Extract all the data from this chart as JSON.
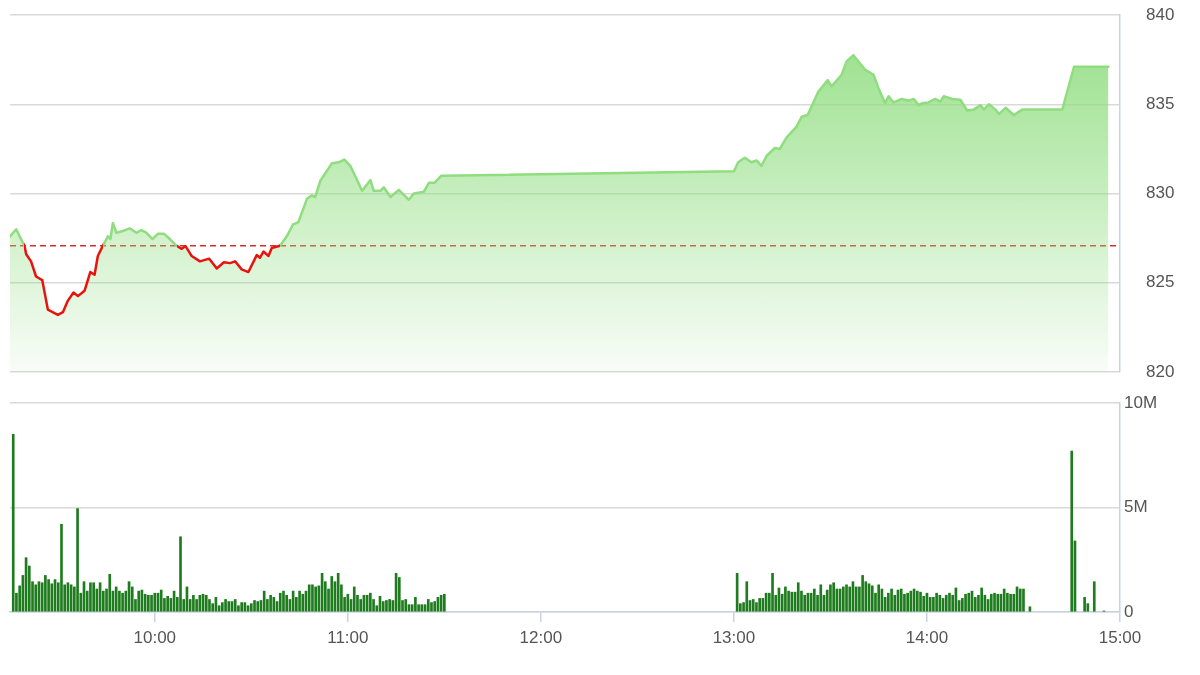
{
  "chart_data": [
    {
      "type": "area",
      "x": [
        9.25,
        9.282,
        9.316,
        9.325,
        9.334,
        9.359,
        9.385,
        9.417,
        9.446,
        9.498,
        9.524,
        9.55,
        9.579,
        9.602,
        9.636,
        9.666,
        9.688,
        9.705,
        9.731,
        9.757,
        9.77,
        9.783,
        9.801,
        9.835,
        9.87,
        9.905,
        9.931,
        9.957,
        9.988,
        10.017,
        10.047,
        10.078,
        10.113,
        10.139,
        10.159,
        10.191,
        10.234,
        10.282,
        10.321,
        10.358,
        10.39,
        10.416,
        10.45,
        10.485,
        10.528,
        10.545,
        10.563,
        10.589,
        10.606,
        10.649,
        10.684,
        10.715,
        10.744,
        10.788,
        10.814,
        10.831,
        10.857,
        10.918,
        10.952,
        10.982,
        11.013,
        11.074,
        11.117,
        11.134,
        11.169,
        11.186,
        11.221,
        11.264,
        11.316,
        11.342,
        11.394,
        11.42,
        11.449,
        11.484,
        11.5,
        13,
        13.022,
        13.056,
        13.091,
        13.117,
        13.143,
        13.169,
        13.212,
        13.238,
        13.273,
        13.325,
        13.351,
        13.382,
        13.437,
        13.486,
        13.506,
        13.558,
        13.584,
        13.619,
        13.679,
        13.723,
        13.749,
        13.783,
        13.801,
        13.827,
        13.87,
        13.905,
        13.931,
        13.957,
        13.974,
        14.009,
        14.043,
        14.069,
        14.087,
        14.13,
        14.173,
        14.208,
        14.243,
        14.277,
        14.295,
        14.321,
        14.355,
        14.373,
        14.407,
        14.45,
        14.494,
        14.701,
        14.762,
        14.94
      ],
      "series": [
        {
          "color": "#8fdd7f",
          "values": [
            827.6,
            828.0,
            827.25,
            827.07,
            826.6,
            826.2,
            825.35,
            825.15,
            823.5,
            823.2,
            823.35,
            824.0,
            824.45,
            824.25,
            824.55,
            825.6,
            825.45,
            826.5,
            827.07,
            827.6,
            827.45,
            828.35,
            827.8,
            827.9,
            828.05,
            827.8,
            827.95,
            827.8,
            827.45,
            827.75,
            827.75,
            827.45,
            827.07,
            826.9,
            827.05,
            826.5,
            826.2,
            826.35,
            825.8,
            826.15,
            826.1,
            826.2,
            825.75,
            825.6,
            826.55,
            826.4,
            826.75,
            826.5,
            826.95,
            827.07,
            827.6,
            828.25,
            828.4,
            829.7,
            829.9,
            829.8,
            830.7,
            831.7,
            831.75,
            831.9,
            831.55,
            830.15,
            830.75,
            830.15,
            830.15,
            830.35,
            829.8,
            830.2,
            829.65,
            830.0,
            830.1,
            830.6,
            830.6,
            831.0,
            831.0,
            831.25,
            831.75,
            832.0,
            831.75,
            831.85,
            831.55,
            832.1,
            832.55,
            832.5,
            833.15,
            833.75,
            834.3,
            834.4,
            835.7,
            836.35,
            836.0,
            836.65,
            837.4,
            837.75,
            836.95,
            836.65,
            835.9,
            835.05,
            835.45,
            835.1,
            835.3,
            835.2,
            835.3,
            834.95,
            835.05,
            835.1,
            835.3,
            835.15,
            835.45,
            835.3,
            835.25,
            834.65,
            834.7,
            834.95,
            834.7,
            835.0,
            834.7,
            834.45,
            834.8,
            834.4,
            834.7,
            834.7,
            837.1,
            837.1
          ],
          "colors": [
            "#8fdd7f",
            "#8fdd7f",
            "#8fdd7f",
            "#e8130c",
            "#e8130c",
            "#e8130c",
            "#e8130c",
            "#e8130c",
            "#e8130c",
            "#e8130c",
            "#e8130c",
            "#e8130c",
            "#e8130c",
            "#e8130c",
            "#e8130c",
            "#e8130c",
            "#e8130c",
            "#e8130c",
            "#e8130c",
            "#8fdd7f",
            "#8fdd7f",
            "#8fdd7f",
            "#8fdd7f",
            "#8fdd7f",
            "#8fdd7f",
            "#8fdd7f",
            "#8fdd7f",
            "#8fdd7f",
            "#8fdd7f",
            "#8fdd7f",
            "#8fdd7f",
            "#8fdd7f",
            "#e8130c",
            "#e8130c",
            "#e8130c",
            "#e8130c",
            "#e8130c",
            "#e8130c",
            "#e8130c",
            "#e8130c",
            "#e8130c",
            "#e8130c",
            "#e8130c",
            "#e8130c",
            "#e8130c",
            "#e8130c",
            "#e8130c",
            "#e8130c",
            "#e8130c",
            "#e8130c",
            "#8fdd7f",
            "#8fdd7f",
            "#8fdd7f",
            "#8fdd7f",
            "#8fdd7f",
            "#8fdd7f",
            "#8fdd7f",
            "#8fdd7f",
            "#8fdd7f",
            "#8fdd7f",
            "#8fdd7f",
            "#8fdd7f",
            "#8fdd7f",
            "#8fdd7f",
            "#8fdd7f",
            "#8fdd7f",
            "#8fdd7f",
            "#8fdd7f",
            "#8fdd7f",
            "#8fdd7f",
            "#8fdd7f",
            "#8fdd7f",
            "#8fdd7f",
            "#8fdd7f",
            "#8fdd7f",
            "#8fdd7f",
            "#8fdd7f",
            "#8fdd7f",
            "#8fdd7f",
            "#8fdd7f",
            "#8fdd7f",
            "#8fdd7f",
            "#8fdd7f",
            "#8fdd7f",
            "#8fdd7f",
            "#8fdd7f",
            "#8fdd7f",
            "#8fdd7f",
            "#8fdd7f",
            "#8fdd7f",
            "#8fdd7f",
            "#8fdd7f",
            "#8fdd7f",
            "#8fdd7f",
            "#8fdd7f",
            "#8fdd7f",
            "#8fdd7f",
            "#8fdd7f",
            "#8fdd7f",
            "#8fdd7f",
            "#8fdd7f",
            "#8fdd7f",
            "#8fdd7f",
            "#8fdd7f",
            "#8fdd7f",
            "#8fdd7f",
            "#8fdd7f",
            "#8fdd7f",
            "#8fdd7f",
            "#8fdd7f",
            "#8fdd7f",
            "#8fdd7f",
            "#8fdd7f",
            "#8fdd7f",
            "#8fdd7f",
            "#8fdd7f",
            "#8fdd7f",
            "#8fdd7f",
            "#8fdd7f",
            "#8fdd7f",
            "#8fdd7f",
            "#8fdd7f",
            "#8fdd7f",
            "#8fdd7f"
          ]
        }
      ],
      "xlim": [
        9.25,
        15
      ],
      "ylim": [
        820,
        840
      ],
      "yticks": [
        820,
        825,
        830,
        835,
        840
      ],
      "ref_lines": [
        {
          "axis": "y",
          "value": 827.07,
          "color": "#d32f2f",
          "line_style": "dashed"
        }
      ],
      "grid": "y",
      "tick_labels": "y"
    },
    {
      "type": "bar",
      "x": [
        9.2667,
        9.2833,
        9.3,
        9.3167,
        9.3333,
        9.35,
        9.3667,
        9.3833,
        9.4,
        9.4167,
        9.4333,
        9.45,
        9.4667,
        9.4833,
        9.5,
        9.5167,
        9.5333,
        9.55,
        9.5667,
        9.5833,
        9.6,
        9.6167,
        9.6333,
        9.65,
        9.6667,
        9.6833,
        9.7,
        9.7167,
        9.7333,
        9.75,
        9.7667,
        9.7833,
        9.8,
        9.8167,
        9.8333,
        9.85,
        9.8667,
        9.8833,
        9.9,
        9.9167,
        9.9333,
        9.95,
        9.9667,
        9.9833,
        10,
        10.0167,
        10.0333,
        10.05,
        10.0667,
        10.0833,
        10.1,
        10.1167,
        10.1333,
        10.15,
        10.1667,
        10.1833,
        10.2,
        10.2167,
        10.2333,
        10.25,
        10.2667,
        10.2833,
        10.3,
        10.3167,
        10.3333,
        10.35,
        10.3667,
        10.3833,
        10.4,
        10.4167,
        10.4333,
        10.45,
        10.4667,
        10.4833,
        10.5,
        10.5167,
        10.5333,
        10.55,
        10.5667,
        10.5833,
        10.6,
        10.6167,
        10.6333,
        10.65,
        10.6667,
        10.6833,
        10.7,
        10.7167,
        10.7333,
        10.75,
        10.7667,
        10.7833,
        10.8,
        10.8167,
        10.8333,
        10.85,
        10.8667,
        10.8833,
        10.9,
        10.9167,
        10.9333,
        10.95,
        10.9667,
        10.9833,
        11,
        11.0167,
        11.0333,
        11.05,
        11.0667,
        11.0833,
        11.1,
        11.1167,
        11.1333,
        11.15,
        11.1667,
        11.1833,
        11.2,
        11.2167,
        11.2333,
        11.25,
        11.2667,
        11.2833,
        11.3,
        11.3167,
        11.3333,
        11.35,
        11.3667,
        11.3833,
        11.4,
        11.4167,
        11.4333,
        11.45,
        11.4667,
        11.4833,
        11.5,
        13.0167,
        13.0333,
        13.05,
        13.0667,
        13.0833,
        13.1,
        13.1167,
        13.1333,
        13.15,
        13.1667,
        13.1833,
        13.2,
        13.2167,
        13.2333,
        13.25,
        13.2667,
        13.2833,
        13.3,
        13.3167,
        13.3333,
        13.35,
        13.3667,
        13.3833,
        13.4,
        13.4167,
        13.4333,
        13.45,
        13.4667,
        13.4833,
        13.5,
        13.5167,
        13.5333,
        13.55,
        13.5667,
        13.5833,
        13.6,
        13.6167,
        13.6333,
        13.65,
        13.6667,
        13.6833,
        13.7,
        13.7167,
        13.7333,
        13.75,
        13.7667,
        13.7833,
        13.8,
        13.8167,
        13.8333,
        13.85,
        13.8667,
        13.8833,
        13.9,
        13.9167,
        13.9333,
        13.95,
        13.9667,
        13.9833,
        14,
        14.0167,
        14.0333,
        14.05,
        14.0667,
        14.0833,
        14.1,
        14.1167,
        14.1333,
        14.15,
        14.1667,
        14.1833,
        14.2,
        14.2167,
        14.2333,
        14.25,
        14.2667,
        14.2833,
        14.3,
        14.3167,
        14.3333,
        14.35,
        14.3667,
        14.3833,
        14.4,
        14.4167,
        14.4333,
        14.45,
        14.4667,
        14.4833,
        14.5,
        14.5333,
        14.75,
        14.7667,
        14.8167,
        14.8333,
        14.8667,
        14.9167
      ],
      "values": [
        8.5,
        0.9,
        1.25,
        1.75,
        2.6,
        2.2,
        1.45,
        1.3,
        1.45,
        1.4,
        1.75,
        1.55,
        1.35,
        1.55,
        1.4,
        4.2,
        1.3,
        1.4,
        1.3,
        1.2,
        4.95,
        0.9,
        1.45,
        1.0,
        1.4,
        1.4,
        1.1,
        1.4,
        1.0,
        1.1,
        1.8,
        1.0,
        1.2,
        1.0,
        0.9,
        1.0,
        1.45,
        1.2,
        0.6,
        1.0,
        1.05,
        0.85,
        0.8,
        0.8,
        0.9,
        0.9,
        1.05,
        0.65,
        0.75,
        0.65,
        1.0,
        0.7,
        3.6,
        0.6,
        1.2,
        0.6,
        0.8,
        0.6,
        0.8,
        0.85,
        0.8,
        0.6,
        0.4,
        0.7,
        0.3,
        0.45,
        0.6,
        0.5,
        0.5,
        0.6,
        0.3,
        0.45,
        0.45,
        0.3,
        0.4,
        0.55,
        0.5,
        0.55,
        1.0,
        0.6,
        0.8,
        0.7,
        0.5,
        0.9,
        1.0,
        0.8,
        0.6,
        1.0,
        0.7,
        1.0,
        0.85,
        1.0,
        1.3,
        1.3,
        1.2,
        1.25,
        1.85,
        1.45,
        1.1,
        1.7,
        1.45,
        1.85,
        1.3,
        0.7,
        0.85,
        0.6,
        1.2,
        0.8,
        0.6,
        0.8,
        0.8,
        0.9,
        0.6,
        0.3,
        0.75,
        0.5,
        0.55,
        0.6,
        0.55,
        1.85,
        1.65,
        0.55,
        0.6,
        0.35,
        0.35,
        0.7,
        0.35,
        0.35,
        0.35,
        0.6,
        0.45,
        0.5,
        0.7,
        0.8,
        0.85,
        1.85,
        0.4,
        0.45,
        1.45,
        0.55,
        0.6,
        0.45,
        0.65,
        0.65,
        0.9,
        0.9,
        1.85,
        0.8,
        1.15,
        0.85,
        1.2,
        1.0,
        0.95,
        0.95,
        1.4,
        1.0,
        0.8,
        0.9,
        0.9,
        1.1,
        0.8,
        1.3,
        0.8,
        1.05,
        1.3,
        1.4,
        1.1,
        1.1,
        1.2,
        1.3,
        1.2,
        1.45,
        1.2,
        1.2,
        1.75,
        1.45,
        1.35,
        1.25,
        0.9,
        1.3,
        1.1,
        0.7,
        0.9,
        1.1,
        0.8,
        1.05,
        1.1,
        0.85,
        0.9,
        1.0,
        1.1,
        1.0,
        0.95,
        0.75,
        0.9,
        0.7,
        0.7,
        0.9,
        0.8,
        0.65,
        0.8,
        0.9,
        0.8,
        1.15,
        0.55,
        0.65,
        0.85,
        0.9,
        1.0,
        0.7,
        0.8,
        1.15,
        0.8,
        0.6,
        0.85,
        0.9,
        0.85,
        0.85,
        1.1,
        0.9,
        0.85,
        0.85,
        1.2,
        1.1,
        1.1,
        0.25,
        7.7,
        3.4,
        0.7,
        0.4,
        1.45,
        0.05
      ],
      "color": "#1e7b1e",
      "xlim": [
        9.25,
        15
      ],
      "xticks": [
        {
          "value": 10,
          "label": "10:00"
        },
        {
          "value": 11,
          "label": "11:00"
        },
        {
          "value": 12,
          "label": "12:00"
        },
        {
          "value": 13,
          "label": "13:00"
        },
        {
          "value": 14,
          "label": "14:00"
        },
        {
          "value": 15,
          "label": "15:00"
        }
      ],
      "ylim": [
        0,
        10
      ],
      "yticks": [
        0,
        {
          "value": 5,
          "label": "5M"
        },
        {
          "value": 10,
          "label": "10M"
        }
      ],
      "grid": "y"
    }
  ]
}
